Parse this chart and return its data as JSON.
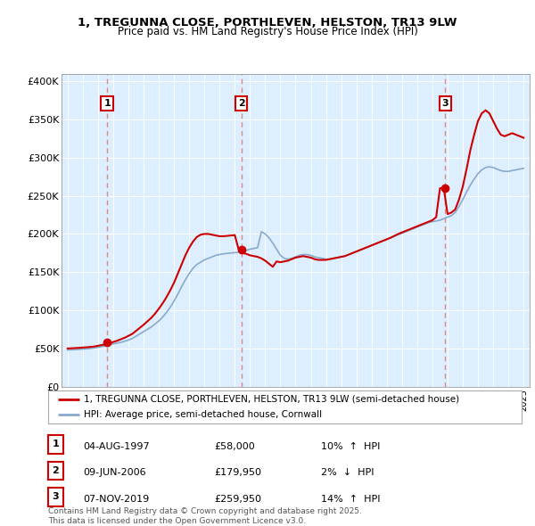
{
  "title1": "1, TREGUNNA CLOSE, PORTHLEVEN, HELSTON, TR13 9LW",
  "title2": "Price paid vs. HM Land Registry's House Price Index (HPI)",
  "legend_line1": "1, TREGUNNA CLOSE, PORTHLEVEN, HELSTON, TR13 9LW (semi-detached house)",
  "legend_line2": "HPI: Average price, semi-detached house, Cornwall",
  "sales": [
    {
      "num": 1,
      "date": "04-AUG-1997",
      "price": 58000,
      "price_str": "£58,000",
      "pct": "10%",
      "dir": "↑",
      "year": 1997.6
    },
    {
      "num": 2,
      "date": "09-JUN-2006",
      "price": 179950,
      "price_str": "£179,950",
      "pct": "2%",
      "dir": "↓",
      "year": 2006.44
    },
    {
      "num": 3,
      "date": "07-NOV-2019",
      "price": 259950,
      "price_str": "£259,950",
      "pct": "14%",
      "dir": "↑",
      "year": 2019.85
    }
  ],
  "sale_marker_color": "#cc0000",
  "hpi_line_color": "#88aacc",
  "price_line_color": "#cc0000",
  "dashed_line_color": "#dd8888",
  "plot_bg": "#ddeeff",
  "grid_color": "#ffffff",
  "ylim_max": 410000,
  "yticks": [
    0,
    50000,
    100000,
    150000,
    200000,
    250000,
    300000,
    350000,
    400000
  ],
  "ytick_labels": [
    "£0",
    "£50K",
    "£100K",
    "£150K",
    "£200K",
    "£250K",
    "£300K",
    "£350K",
    "£400K"
  ],
  "footnote": "Contains HM Land Registry data © Crown copyright and database right 2025.\nThis data is licensed under the Open Government Licence v3.0.",
  "hpi_data": [
    [
      1995.0,
      48000
    ],
    [
      1995.25,
      48200
    ],
    [
      1995.5,
      48500
    ],
    [
      1995.75,
      48800
    ],
    [
      1996.0,
      49200
    ],
    [
      1996.25,
      49500
    ],
    [
      1996.5,
      50000
    ],
    [
      1996.75,
      50500
    ],
    [
      1997.0,
      51500
    ],
    [
      1997.25,
      52500
    ],
    [
      1997.5,
      53500
    ],
    [
      1997.75,
      54500
    ],
    [
      1998.0,
      56000
    ],
    [
      1998.25,
      57000
    ],
    [
      1998.5,
      58000
    ],
    [
      1998.75,
      59500
    ],
    [
      1999.0,
      61000
    ],
    [
      1999.25,
      63000
    ],
    [
      1999.5,
      66000
    ],
    [
      1999.75,
      69000
    ],
    [
      2000.0,
      72000
    ],
    [
      2000.25,
      75000
    ],
    [
      2000.5,
      78000
    ],
    [
      2000.75,
      82000
    ],
    [
      2001.0,
      86000
    ],
    [
      2001.25,
      91000
    ],
    [
      2001.5,
      97000
    ],
    [
      2001.75,
      104000
    ],
    [
      2002.0,
      112000
    ],
    [
      2002.25,
      121000
    ],
    [
      2002.5,
      131000
    ],
    [
      2002.75,
      140000
    ],
    [
      2003.0,
      148000
    ],
    [
      2003.25,
      155000
    ],
    [
      2003.5,
      160000
    ],
    [
      2003.75,
      163000
    ],
    [
      2004.0,
      166000
    ],
    [
      2004.25,
      168000
    ],
    [
      2004.5,
      170000
    ],
    [
      2004.75,
      172000
    ],
    [
      2005.0,
      173000
    ],
    [
      2005.25,
      174000
    ],
    [
      2005.5,
      174500
    ],
    [
      2005.75,
      175000
    ],
    [
      2006.0,
      175500
    ],
    [
      2006.25,
      176000
    ],
    [
      2006.5,
      177000
    ],
    [
      2006.75,
      178500
    ],
    [
      2007.0,
      180000
    ],
    [
      2007.25,
      181000
    ],
    [
      2007.5,
      182000
    ],
    [
      2007.75,
      203000
    ],
    [
      2008.0,
      200000
    ],
    [
      2008.25,
      195000
    ],
    [
      2008.5,
      188000
    ],
    [
      2008.75,
      180000
    ],
    [
      2009.0,
      172000
    ],
    [
      2009.25,
      168000
    ],
    [
      2009.5,
      167000
    ],
    [
      2009.75,
      168000
    ],
    [
      2010.0,
      170000
    ],
    [
      2010.25,
      172000
    ],
    [
      2010.5,
      173000
    ],
    [
      2010.75,
      173000
    ],
    [
      2011.0,
      172000
    ],
    [
      2011.25,
      170000
    ],
    [
      2011.5,
      169000
    ],
    [
      2011.75,
      168000
    ],
    [
      2012.0,
      167000
    ],
    [
      2012.25,
      167000
    ],
    [
      2012.5,
      168000
    ],
    [
      2012.75,
      169000
    ],
    [
      2013.0,
      170000
    ],
    [
      2013.25,
      171000
    ],
    [
      2013.5,
      173000
    ],
    [
      2013.75,
      175000
    ],
    [
      2014.0,
      177000
    ],
    [
      2014.25,
      179000
    ],
    [
      2014.5,
      181000
    ],
    [
      2014.75,
      183000
    ],
    [
      2015.0,
      185000
    ],
    [
      2015.25,
      187000
    ],
    [
      2015.5,
      189000
    ],
    [
      2015.75,
      191000
    ],
    [
      2016.0,
      193000
    ],
    [
      2016.25,
      195000
    ],
    [
      2016.5,
      197000
    ],
    [
      2016.75,
      199000
    ],
    [
      2017.0,
      201000
    ],
    [
      2017.25,
      203000
    ],
    [
      2017.5,
      205000
    ],
    [
      2017.75,
      207000
    ],
    [
      2018.0,
      209000
    ],
    [
      2018.25,
      211000
    ],
    [
      2018.5,
      213000
    ],
    [
      2018.75,
      215000
    ],
    [
      2019.0,
      216000
    ],
    [
      2019.25,
      217000
    ],
    [
      2019.5,
      218000
    ],
    [
      2019.75,
      220000
    ],
    [
      2020.0,
      222000
    ],
    [
      2020.25,
      224000
    ],
    [
      2020.5,
      228000
    ],
    [
      2020.75,
      236000
    ],
    [
      2021.0,
      245000
    ],
    [
      2021.25,
      255000
    ],
    [
      2021.5,
      264000
    ],
    [
      2021.75,
      272000
    ],
    [
      2022.0,
      279000
    ],
    [
      2022.25,
      284000
    ],
    [
      2022.5,
      287000
    ],
    [
      2022.75,
      288000
    ],
    [
      2023.0,
      287000
    ],
    [
      2023.25,
      285000
    ],
    [
      2023.5,
      283000
    ],
    [
      2023.75,
      282000
    ],
    [
      2024.0,
      282000
    ],
    [
      2024.25,
      283000
    ],
    [
      2024.5,
      284000
    ],
    [
      2024.75,
      285000
    ],
    [
      2025.0,
      286000
    ]
  ],
  "price_data": [
    [
      1995.0,
      50000
    ],
    [
      1995.25,
      50200
    ],
    [
      1995.5,
      50500
    ],
    [
      1995.75,
      50800
    ],
    [
      1996.0,
      51200
    ],
    [
      1996.25,
      51500
    ],
    [
      1996.5,
      52000
    ],
    [
      1996.75,
      52500
    ],
    [
      1997.0,
      53500
    ],
    [
      1997.25,
      54500
    ],
    [
      1997.5,
      55500
    ],
    [
      1997.75,
      56500
    ],
    [
      1998.0,
      58500
    ],
    [
      1998.25,
      60000
    ],
    [
      1998.5,
      62000
    ],
    [
      1998.75,
      64000
    ],
    [
      1999.0,
      66500
    ],
    [
      1999.25,
      69000
    ],
    [
      1999.5,
      73000
    ],
    [
      1999.75,
      77000
    ],
    [
      2000.0,
      81000
    ],
    [
      2000.25,
      85500
    ],
    [
      2000.5,
      90000
    ],
    [
      2000.75,
      95500
    ],
    [
      2001.0,
      102000
    ],
    [
      2001.25,
      109000
    ],
    [
      2001.5,
      117000
    ],
    [
      2001.75,
      126000
    ],
    [
      2002.0,
      136000
    ],
    [
      2002.25,
      148000
    ],
    [
      2002.5,
      160000
    ],
    [
      2002.75,
      172000
    ],
    [
      2003.0,
      182000
    ],
    [
      2003.25,
      190000
    ],
    [
      2003.5,
      196000
    ],
    [
      2003.75,
      199000
    ],
    [
      2004.0,
      200000
    ],
    [
      2004.25,
      200000
    ],
    [
      2004.5,
      199000
    ],
    [
      2004.75,
      198000
    ],
    [
      2005.0,
      197000
    ],
    [
      2005.25,
      197000
    ],
    [
      2005.5,
      197500
    ],
    [
      2005.75,
      198000
    ],
    [
      2006.0,
      198500
    ],
    [
      2006.25,
      179950
    ],
    [
      2006.5,
      175000
    ],
    [
      2006.75,
      174000
    ],
    [
      2007.0,
      172000
    ],
    [
      2007.25,
      171000
    ],
    [
      2007.5,
      170000
    ],
    [
      2007.75,
      168000
    ],
    [
      2008.0,
      165000
    ],
    [
      2008.25,
      161000
    ],
    [
      2008.5,
      157000
    ],
    [
      2008.75,
      164000
    ],
    [
      2009.0,
      163000
    ],
    [
      2009.25,
      164000
    ],
    [
      2009.5,
      165000
    ],
    [
      2009.75,
      167000
    ],
    [
      2010.0,
      169000
    ],
    [
      2010.25,
      170000
    ],
    [
      2010.5,
      171000
    ],
    [
      2010.75,
      170000
    ],
    [
      2011.0,
      169000
    ],
    [
      2011.25,
      167000
    ],
    [
      2011.5,
      166000
    ],
    [
      2011.75,
      166000
    ],
    [
      2012.0,
      166000
    ],
    [
      2012.25,
      167000
    ],
    [
      2012.5,
      168000
    ],
    [
      2012.75,
      169000
    ],
    [
      2013.0,
      170000
    ],
    [
      2013.25,
      171000
    ],
    [
      2013.5,
      173000
    ],
    [
      2013.75,
      175000
    ],
    [
      2014.0,
      177000
    ],
    [
      2014.25,
      179000
    ],
    [
      2014.5,
      181000
    ],
    [
      2014.75,
      183000
    ],
    [
      2015.0,
      185000
    ],
    [
      2015.25,
      187000
    ],
    [
      2015.5,
      189000
    ],
    [
      2015.75,
      191000
    ],
    [
      2016.0,
      193000
    ],
    [
      2016.25,
      195000
    ],
    [
      2016.5,
      197500
    ],
    [
      2016.75,
      200000
    ],
    [
      2017.0,
      202000
    ],
    [
      2017.25,
      204000
    ],
    [
      2017.5,
      206000
    ],
    [
      2017.75,
      208000
    ],
    [
      2018.0,
      210000
    ],
    [
      2018.25,
      212000
    ],
    [
      2018.5,
      214000
    ],
    [
      2018.75,
      216000
    ],
    [
      2019.0,
      218000
    ],
    [
      2019.25,
      222000
    ],
    [
      2019.5,
      259950
    ],
    [
      2019.75,
      260000
    ],
    [
      2020.0,
      226000
    ],
    [
      2020.25,
      228000
    ],
    [
      2020.5,
      232000
    ],
    [
      2020.75,
      245000
    ],
    [
      2021.0,
      262000
    ],
    [
      2021.25,
      285000
    ],
    [
      2021.5,
      310000
    ],
    [
      2021.75,
      330000
    ],
    [
      2022.0,
      348000
    ],
    [
      2022.25,
      358000
    ],
    [
      2022.5,
      362000
    ],
    [
      2022.75,
      358000
    ],
    [
      2023.0,
      348000
    ],
    [
      2023.25,
      338000
    ],
    [
      2023.5,
      330000
    ],
    [
      2023.75,
      328000
    ],
    [
      2024.0,
      330000
    ],
    [
      2024.25,
      332000
    ],
    [
      2024.5,
      330000
    ],
    [
      2024.75,
      328000
    ],
    [
      2025.0,
      326000
    ]
  ]
}
